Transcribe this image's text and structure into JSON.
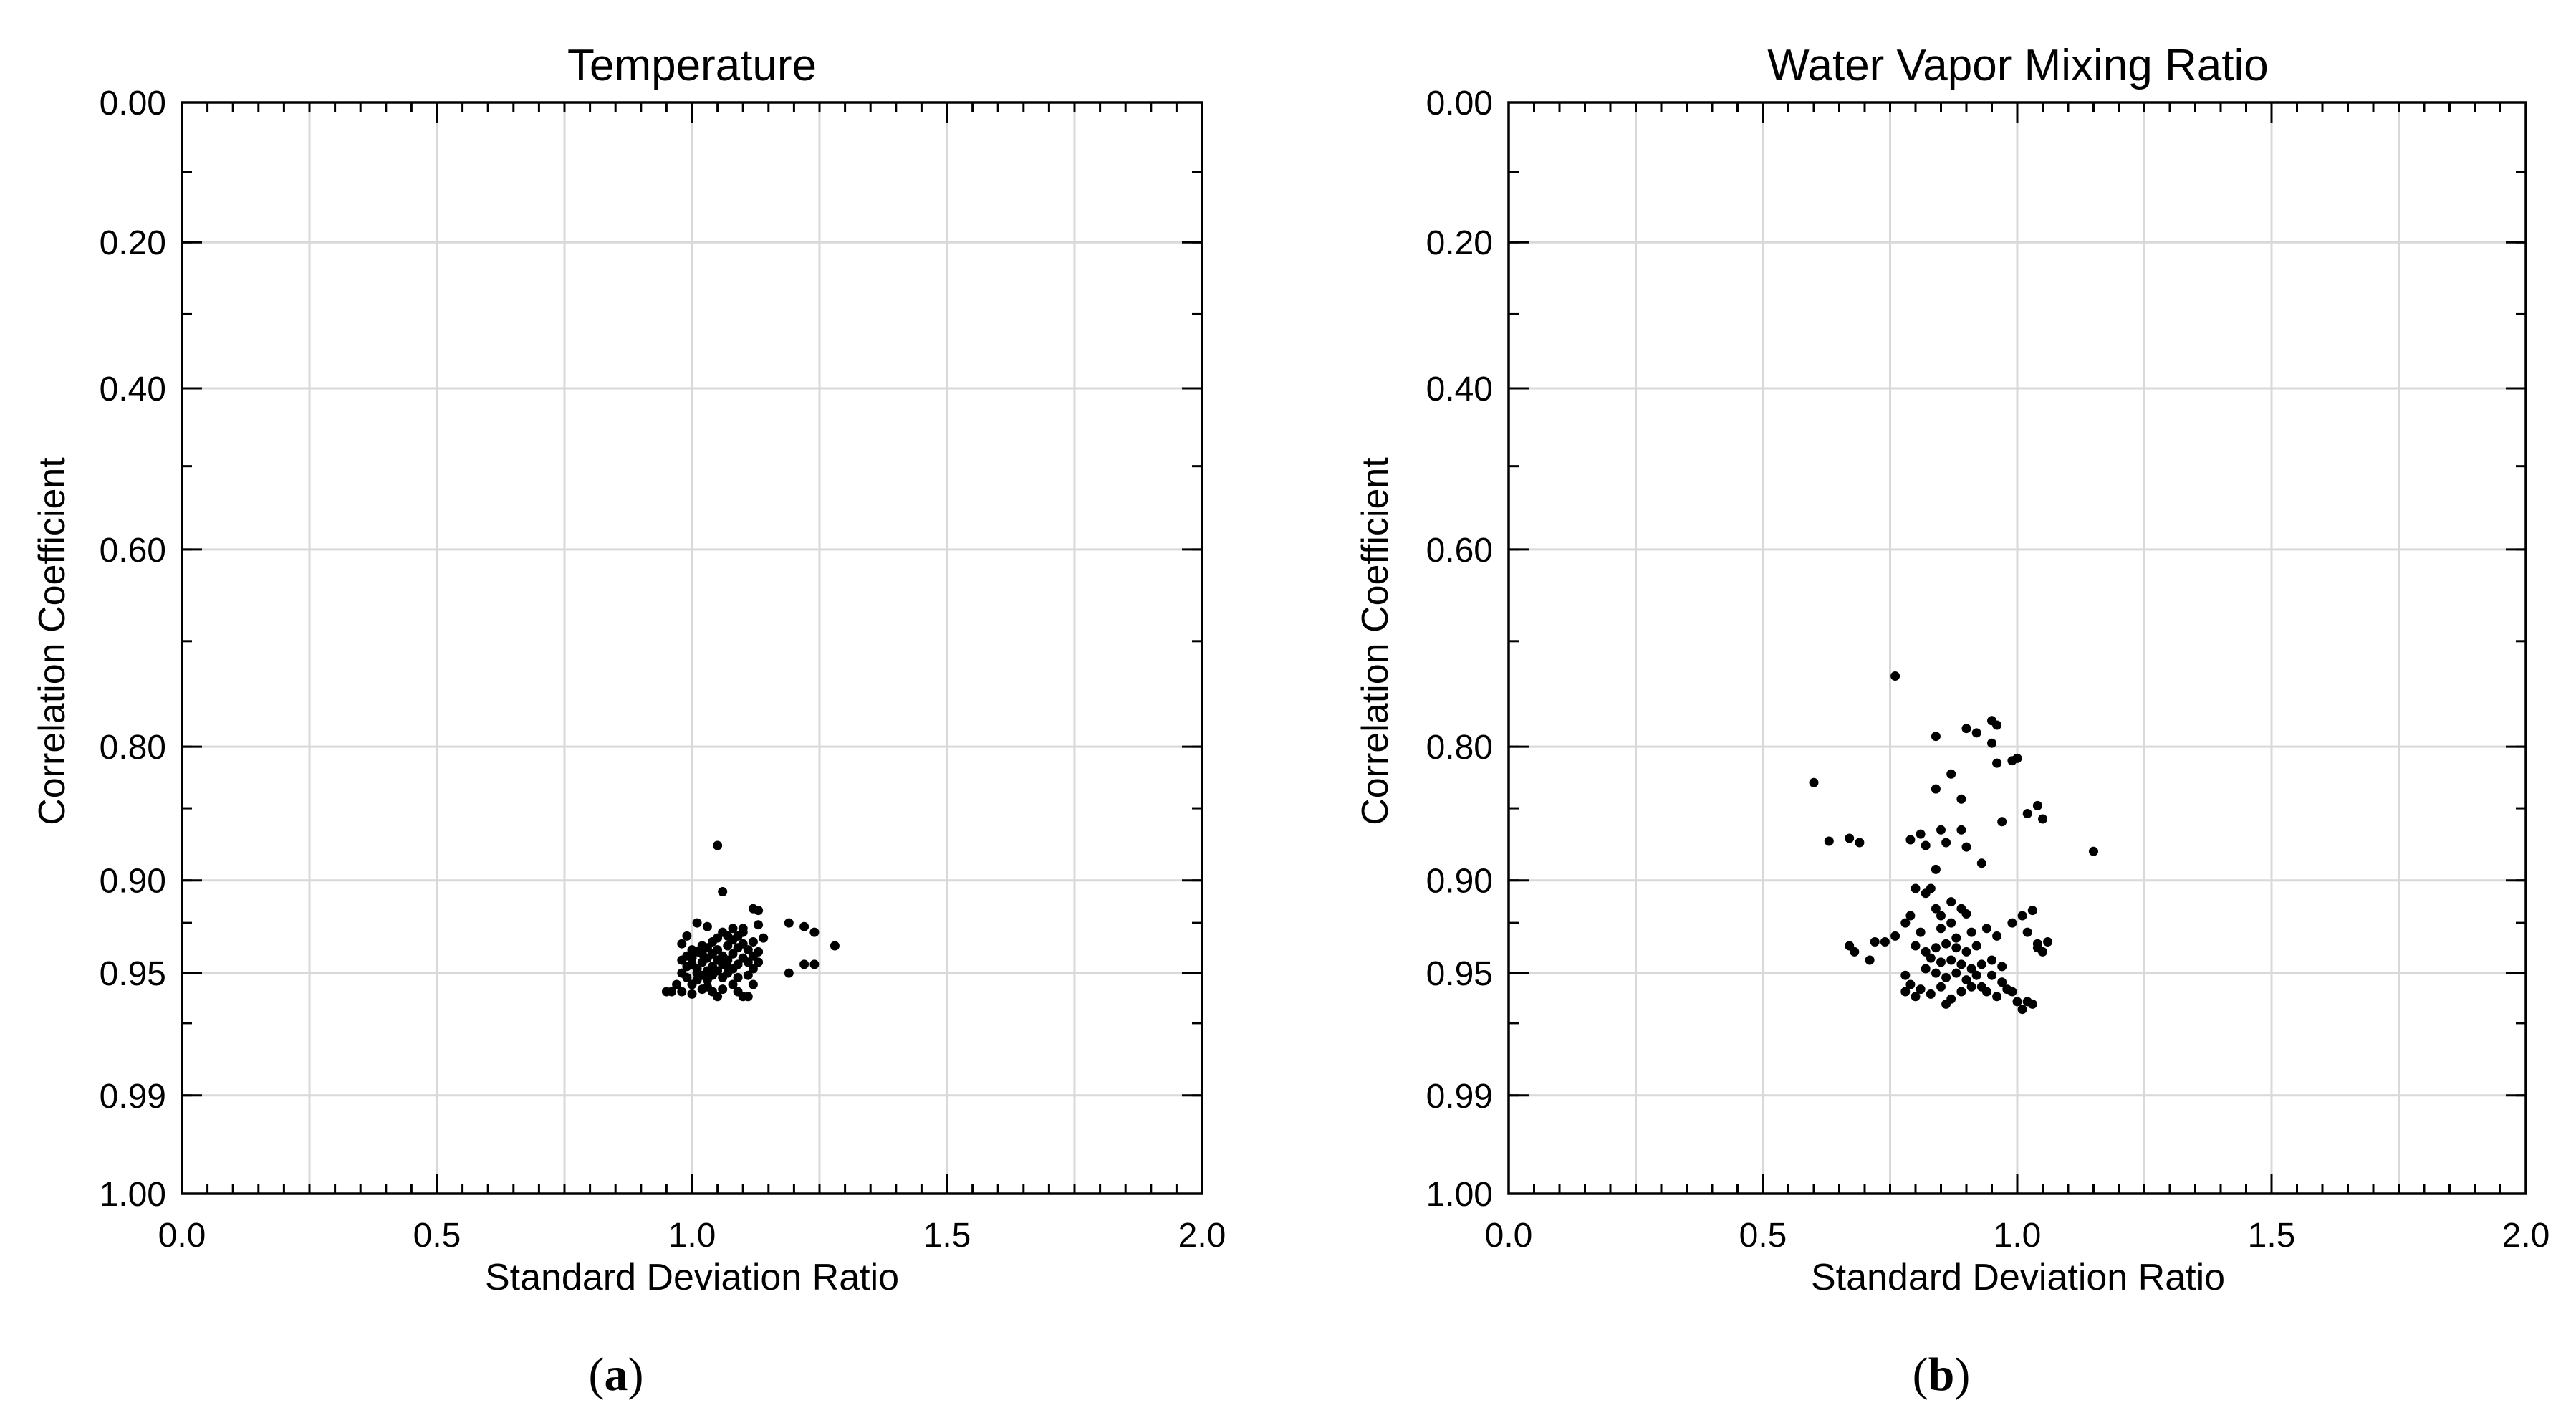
{
  "chart_data": [
    {
      "type": "scatter",
      "panel_label": "a",
      "title": "Temperature",
      "xlabel": "Standard Deviation Ratio",
      "ylabel": "Correlation Coefficient",
      "xlim": [
        0.0,
        2.0
      ],
      "x_ticks": [
        "0.0",
        "0.5",
        "1.0",
        "1.5",
        "2.0"
      ],
      "y_ticks": [
        "0.00",
        "0.20",
        "0.40",
        "0.60",
        "0.80",
        "0.90",
        "0.95",
        "0.99",
        "1.00"
      ],
      "y_scale": "taylor-arccos",
      "grid": true,
      "points": [
        [
          1.05,
          0.877
        ],
        [
          1.06,
          0.907
        ],
        [
          1.12,
          0.917
        ],
        [
          1.13,
          0.918
        ],
        [
          1.19,
          0.925
        ],
        [
          1.22,
          0.927
        ],
        [
          1.24,
          0.93
        ],
        [
          1.28,
          0.937
        ],
        [
          1.24,
          0.946
        ],
        [
          1.22,
          0.946
        ],
        [
          1.19,
          0.95
        ],
        [
          1.13,
          0.926
        ],
        [
          1.14,
          0.933
        ],
        [
          1.12,
          0.935
        ],
        [
          1.13,
          0.94
        ],
        [
          1.1,
          0.93
        ],
        [
          1.08,
          0.928
        ],
        [
          1.07,
          0.932
        ],
        [
          1.06,
          0.93
        ],
        [
          1.05,
          0.933
        ],
        [
          1.04,
          0.935
        ],
        [
          1.03,
          0.938
        ],
        [
          1.02,
          0.937
        ],
        [
          1.01,
          0.94
        ],
        [
          1.0,
          0.939
        ],
        [
          0.99,
          0.932
        ],
        [
          0.99,
          0.942
        ],
        [
          0.98,
          0.944
        ],
        [
          0.99,
          0.947
        ],
        [
          1.0,
          0.946
        ],
        [
          1.01,
          0.948
        ],
        [
          1.02,
          0.945
        ],
        [
          1.03,
          0.943
        ],
        [
          1.04,
          0.941
        ],
        [
          1.05,
          0.939
        ],
        [
          1.06,
          0.942
        ],
        [
          1.07,
          0.944
        ],
        [
          1.08,
          0.941
        ],
        [
          1.09,
          0.938
        ],
        [
          1.1,
          0.936
        ],
        [
          1.11,
          0.939
        ],
        [
          1.12,
          0.942
        ],
        [
          1.11,
          0.945
        ],
        [
          1.1,
          0.943
        ],
        [
          1.09,
          0.946
        ],
        [
          1.08,
          0.948
        ],
        [
          1.07,
          0.95
        ],
        [
          1.06,
          0.952
        ],
        [
          1.05,
          0.949
        ],
        [
          1.04,
          0.951
        ],
        [
          1.03,
          0.953
        ],
        [
          1.02,
          0.951
        ],
        [
          1.01,
          0.953
        ],
        [
          1.0,
          0.955
        ],
        [
          0.99,
          0.952
        ],
        [
          0.98,
          0.95
        ],
        [
          0.97,
          0.955
        ],
        [
          0.96,
          0.958
        ],
        [
          0.95,
          0.958
        ],
        [
          0.98,
          0.958
        ],
        [
          1.0,
          0.959
        ],
        [
          1.02,
          0.957
        ],
        [
          1.04,
          0.958
        ],
        [
          1.05,
          0.96
        ],
        [
          1.06,
          0.957
        ],
        [
          1.08,
          0.955
        ],
        [
          1.09,
          0.958
        ],
        [
          1.1,
          0.96
        ],
        [
          1.11,
          0.96
        ],
        [
          1.12,
          0.955
        ],
        [
          1.12,
          0.948
        ],
        [
          1.11,
          0.951
        ],
        [
          1.13,
          0.945
        ],
        [
          1.06,
          0.946
        ],
        [
          1.04,
          0.947
        ],
        [
          1.03,
          0.949
        ],
        [
          1.02,
          0.941
        ],
        [
          1.0,
          0.943
        ],
        [
          1.07,
          0.937
        ],
        [
          1.08,
          0.934
        ],
        [
          1.09,
          0.932
        ],
        [
          1.1,
          0.928
        ],
        [
          1.03,
          0.927
        ],
        [
          1.01,
          0.925
        ],
        [
          0.98,
          0.936
        ],
        [
          1.05,
          0.944
        ],
        [
          1.07,
          0.947
        ],
        [
          1.09,
          0.952
        ],
        [
          1.01,
          0.95
        ],
        [
          1.03,
          0.956
        ]
      ]
    },
    {
      "type": "scatter",
      "panel_label": "b",
      "title": "Water Vapor Mixing Ratio",
      "xlabel": "Standard Deviation Ratio",
      "ylabel": "Correlation Coefficient",
      "xlim": [
        0.0,
        2.0
      ],
      "x_ticks": [
        "0.0",
        "0.5",
        "1.0",
        "1.5",
        "2.0"
      ],
      "y_ticks": [
        "0.00",
        "0.20",
        "0.40",
        "0.60",
        "0.80",
        "0.90",
        "0.95",
        "0.99",
        "1.00"
      ],
      "y_scale": "taylor-arccos",
      "grid": true,
      "points": [
        [
          0.76,
          0.735
        ],
        [
          0.95,
          0.777
        ],
        [
          0.96,
          0.781
        ],
        [
          0.9,
          0.784
        ],
        [
          0.92,
          0.788
        ],
        [
          0.84,
          0.791
        ],
        [
          0.95,
          0.797
        ],
        [
          1.0,
          0.81
        ],
        [
          0.99,
          0.812
        ],
        [
          0.96,
          0.814
        ],
        [
          0.87,
          0.823
        ],
        [
          0.6,
          0.83
        ],
        [
          0.84,
          0.835
        ],
        [
          0.89,
          0.843
        ],
        [
          1.04,
          0.848
        ],
        [
          1.02,
          0.854
        ],
        [
          1.05,
          0.858
        ],
        [
          0.97,
          0.86
        ],
        [
          0.85,
          0.866
        ],
        [
          0.81,
          0.869
        ],
        [
          0.89,
          0.866
        ],
        [
          0.63,
          0.874
        ],
        [
          0.67,
          0.872
        ],
        [
          0.69,
          0.875
        ],
        [
          0.79,
          0.873
        ],
        [
          0.82,
          0.877
        ],
        [
          0.9,
          0.878
        ],
        [
          0.86,
          0.875
        ],
        [
          1.15,
          0.881
        ],
        [
          0.93,
          0.889
        ],
        [
          0.84,
          0.893
        ],
        [
          0.8,
          0.905
        ],
        [
          0.82,
          0.908
        ],
        [
          0.83,
          0.905
        ],
        [
          0.87,
          0.913
        ],
        [
          0.89,
          0.917
        ],
        [
          0.85,
          0.921
        ],
        [
          0.79,
          0.921
        ],
        [
          0.78,
          0.925
        ],
        [
          0.76,
          0.932
        ],
        [
          0.72,
          0.935
        ],
        [
          0.74,
          0.935
        ],
        [
          0.67,
          0.937
        ],
        [
          0.68,
          0.94
        ],
        [
          0.71,
          0.944
        ],
        [
          1.01,
          0.921
        ],
        [
          1.03,
          0.918
        ],
        [
          1.02,
          0.93
        ],
        [
          1.04,
          0.936
        ],
        [
          1.06,
          0.935
        ],
        [
          1.04,
          0.938
        ],
        [
          1.05,
          0.94
        ],
        [
          0.8,
          0.937
        ],
        [
          0.82,
          0.94
        ],
        [
          0.84,
          0.938
        ],
        [
          0.86,
          0.936
        ],
        [
          0.88,
          0.938
        ],
        [
          0.9,
          0.94
        ],
        [
          0.92,
          0.937
        ],
        [
          0.83,
          0.943
        ],
        [
          0.85,
          0.945
        ],
        [
          0.87,
          0.944
        ],
        [
          0.89,
          0.946
        ],
        [
          0.91,
          0.948
        ],
        [
          0.93,
          0.946
        ],
        [
          0.95,
          0.944
        ],
        [
          0.97,
          0.947
        ],
        [
          0.82,
          0.948
        ],
        [
          0.84,
          0.95
        ],
        [
          0.86,
          0.952
        ],
        [
          0.88,
          0.95
        ],
        [
          0.9,
          0.953
        ],
        [
          0.92,
          0.951
        ],
        [
          0.78,
          0.951
        ],
        [
          0.79,
          0.955
        ],
        [
          0.81,
          0.957
        ],
        [
          0.83,
          0.959
        ],
        [
          0.85,
          0.956
        ],
        [
          0.87,
          0.961
        ],
        [
          0.89,
          0.958
        ],
        [
          0.91,
          0.956
        ],
        [
          0.94,
          0.958
        ],
        [
          0.96,
          0.96
        ],
        [
          0.98,
          0.957
        ],
        [
          1.0,
          0.962
        ],
        [
          1.02,
          0.962
        ],
        [
          1.01,
          0.965
        ],
        [
          1.03,
          0.963
        ],
        [
          0.99,
          0.958
        ],
        [
          0.97,
          0.954
        ],
        [
          0.95,
          0.951
        ],
        [
          0.93,
          0.956
        ],
        [
          0.86,
          0.963
        ],
        [
          0.78,
          0.958
        ],
        [
          0.8,
          0.96
        ],
        [
          0.88,
          0.933
        ],
        [
          0.91,
          0.93
        ],
        [
          0.94,
          0.928
        ],
        [
          0.96,
          0.932
        ],
        [
          0.99,
          0.925
        ],
        [
          0.81,
          0.93
        ],
        [
          0.85,
          0.928
        ],
        [
          0.87,
          0.925
        ],
        [
          0.9,
          0.92
        ],
        [
          0.84,
          0.917
        ]
      ]
    }
  ],
  "captions": {
    "a": "a",
    "b": "b"
  }
}
